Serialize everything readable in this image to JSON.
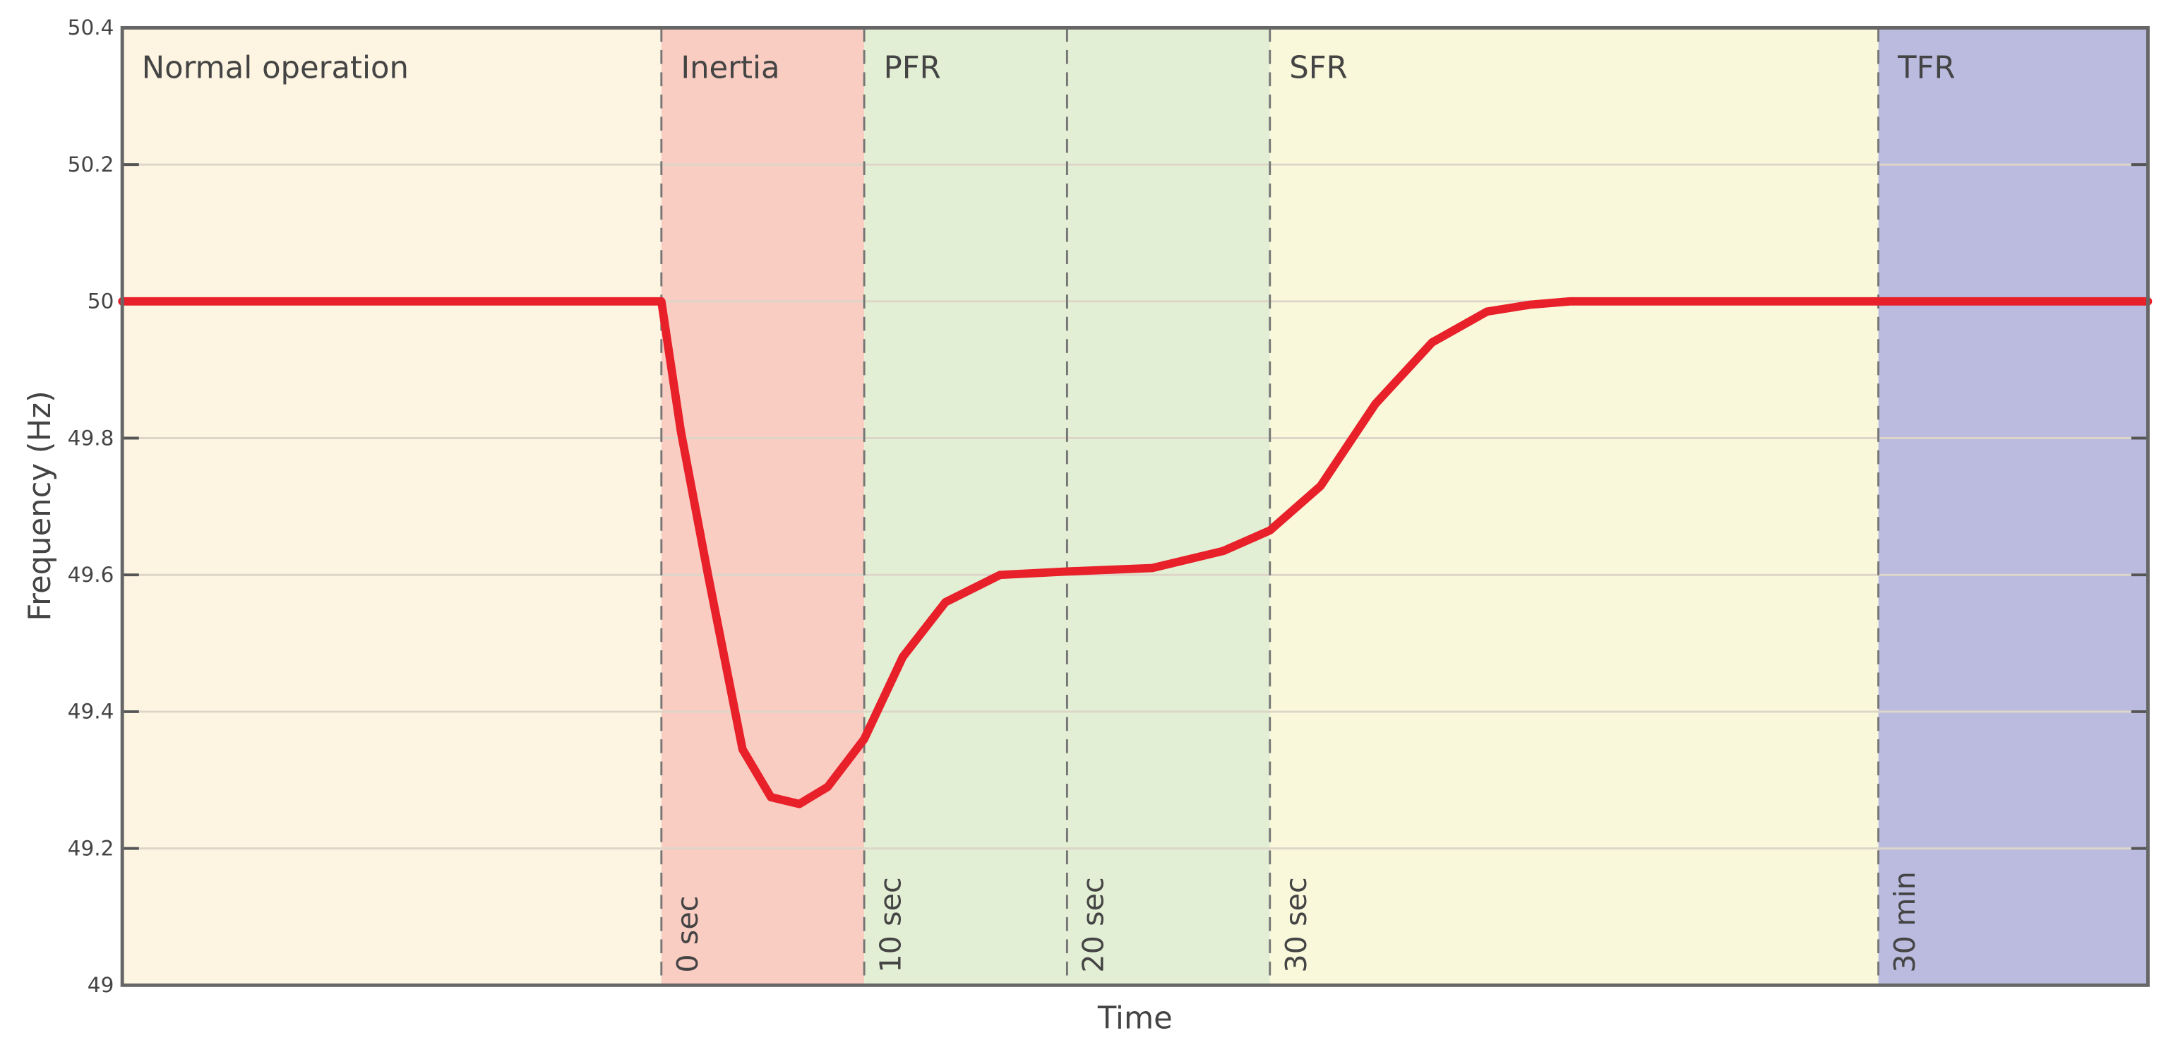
{
  "chart_data": {
    "type": "line",
    "y_label": "Frequency (Hz)",
    "x_label": "Time",
    "xlim": [
      -26.58,
      73.29
    ],
    "ylim": [
      49,
      50.4
    ],
    "yticks": [
      49,
      49.2,
      49.4,
      49.6,
      49.8,
      50,
      50.2,
      50.4
    ],
    "grid": true,
    "regions": [
      {
        "label": "Normal operation",
        "start": -26.58,
        "end": 0,
        "color": "#fdf5e2"
      },
      {
        "label": "Inertia",
        "start": 0,
        "end": 10,
        "color": "#f9cdc2"
      },
      {
        "label": "PFR",
        "start": 10,
        "end": 30,
        "color": "#e3efd4"
      },
      {
        "label": "SFR",
        "start": 30,
        "end": 60,
        "color": "#f9f8db"
      },
      {
        "label": "TFR",
        "start": 60,
        "end": 73.29,
        "color": "#babbdf"
      }
    ],
    "markers": [
      {
        "value": 0,
        "label": "0 sec"
      },
      {
        "value": 10,
        "label": "10 sec"
      },
      {
        "value": 20,
        "label": "20 sec"
      },
      {
        "value": 30,
        "label": "30 sec"
      },
      {
        "value": 60,
        "label": "30 min"
      }
    ],
    "series": [
      {
        "color": "#e8202a",
        "x": [
          -26.58,
          0,
          0.96,
          2.3,
          4.0,
          5.4,
          6.8,
          8.2,
          10,
          11.9,
          14,
          16.7,
          20,
          24.2,
          27.7,
          30,
          32.5,
          35.2,
          38,
          40.7,
          42.8,
          44.8,
          73.29
        ],
        "values": [
          50,
          50,
          49.81,
          49.6,
          49.345,
          49.275,
          49.265,
          49.29,
          49.36,
          49.48,
          49.56,
          49.6,
          49.605,
          49.61,
          49.635,
          49.665,
          49.73,
          49.85,
          49.94,
          49.985,
          49.995,
          50,
          50
        ]
      }
    ]
  }
}
